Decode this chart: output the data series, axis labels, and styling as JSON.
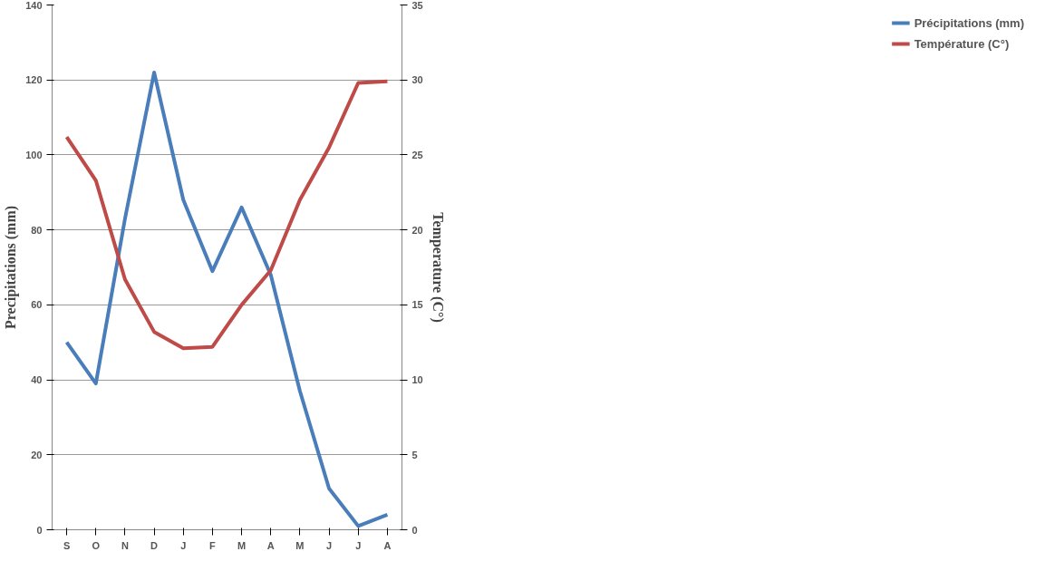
{
  "chart_data": {
    "type": "line",
    "categories": [
      "S",
      "O",
      "N",
      "D",
      "J",
      "F",
      "M",
      "A",
      "M",
      "J",
      "J",
      "A"
    ],
    "series": [
      {
        "name": "Précipitations (mm)",
        "color": "#4a7ebb",
        "values": [
          50,
          39,
          83,
          122,
          88,
          69,
          86,
          68,
          37,
          11,
          1,
          4
        ]
      },
      {
        "name": "Température (C°)",
        "color": "#be4b48",
        "axis": "y2",
        "values": [
          26.2,
          23.3,
          16.7,
          13.2,
          12.1,
          12.2,
          15,
          17.3,
          22,
          25.5,
          29.8,
          29.9
        ]
      }
    ],
    "ylabel": "Precipitations (mm)",
    "y2label": "Temperature (C°)",
    "ylim": [
      0,
      140
    ],
    "yticks": [
      0,
      20,
      40,
      60,
      80,
      100,
      120,
      140
    ],
    "y2lim": [
      0,
      35
    ],
    "y2ticks": [
      0,
      5,
      10,
      15,
      20,
      25,
      30,
      35
    ],
    "grid": "y",
    "legend": "right",
    "marker": "none",
    "line_style": "solid"
  }
}
